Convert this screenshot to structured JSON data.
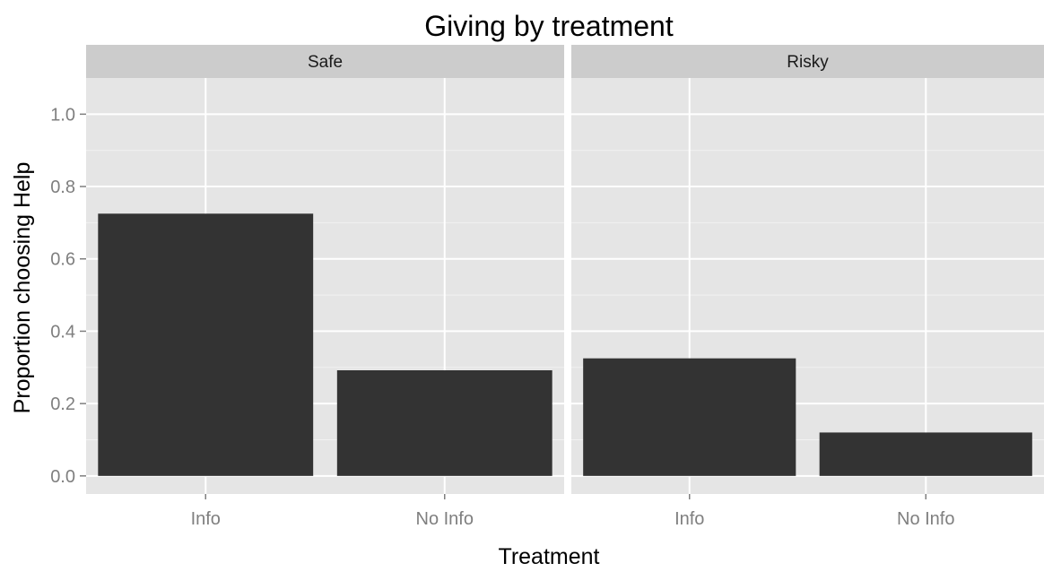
{
  "chart_data": {
    "type": "bar",
    "title": "Giving by treatment",
    "xlabel": "Treatment",
    "ylabel": "Proportion choosing Help",
    "ylim": [
      -0.05,
      1.1
    ],
    "yticks": [
      "0.0",
      "0.2",
      "0.4",
      "0.6",
      "0.8",
      "1.0"
    ],
    "categories": [
      "Info",
      "No Info"
    ],
    "grid": true,
    "bar_color": "#333333",
    "panel_color": "#e5e5e5",
    "strip_color": "#cccccc",
    "facets": [
      {
        "name": "Safe",
        "values": [
          0.725,
          0.292
        ]
      },
      {
        "name": "Risky",
        "values": [
          0.325,
          0.12
        ]
      }
    ]
  }
}
